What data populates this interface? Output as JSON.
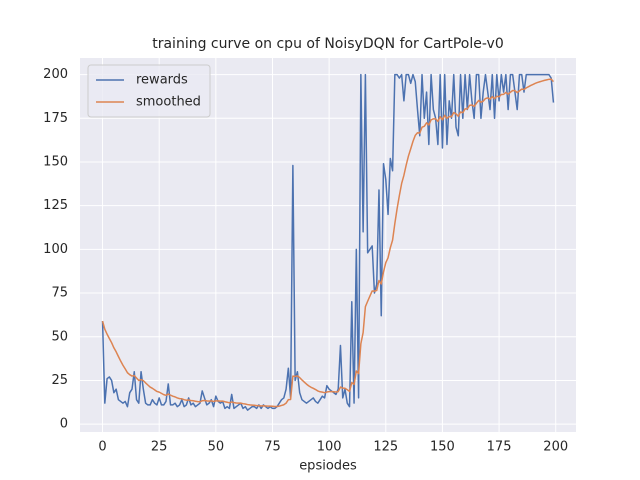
{
  "chart_data": {
    "type": "line",
    "title": "training curve on cpu of NoisyDQN for CartPole-v0",
    "x_label": "epsiodes",
    "x": [
      0,
      1,
      2,
      3,
      4,
      5,
      6,
      7,
      8,
      9,
      10,
      11,
      12,
      13,
      14,
      15,
      16,
      17,
      18,
      19,
      20,
      21,
      22,
      23,
      24,
      25,
      26,
      27,
      28,
      29,
      30,
      31,
      32,
      33,
      34,
      35,
      36,
      37,
      38,
      39,
      40,
      41,
      42,
      43,
      44,
      45,
      46,
      47,
      48,
      49,
      50,
      51,
      52,
      53,
      54,
      55,
      56,
      57,
      58,
      59,
      60,
      61,
      62,
      63,
      64,
      65,
      66,
      67,
      68,
      69,
      70,
      71,
      72,
      73,
      74,
      75,
      76,
      77,
      78,
      79,
      80,
      81,
      82,
      83,
      84,
      85,
      86,
      87,
      88,
      89,
      90,
      91,
      92,
      93,
      94,
      95,
      96,
      97,
      98,
      99,
      100,
      101,
      102,
      103,
      104,
      105,
      106,
      107,
      108,
      109,
      110,
      111,
      112,
      113,
      114,
      115,
      116,
      117,
      118,
      119,
      120,
      121,
      122,
      123,
      124,
      125,
      126,
      127,
      128,
      129,
      130,
      131,
      132,
      133,
      134,
      135,
      136,
      137,
      138,
      139,
      140,
      141,
      142,
      143,
      144,
      145,
      146,
      147,
      148,
      149,
      150,
      151,
      152,
      153,
      154,
      155,
      156,
      157,
      158,
      159,
      160,
      161,
      162,
      163,
      164,
      165,
      166,
      167,
      168,
      169,
      170,
      171,
      172,
      173,
      174,
      175,
      176,
      177,
      178,
      179,
      180,
      181,
      182,
      183,
      184,
      185,
      186,
      187,
      188,
      189,
      190,
      191,
      192,
      193,
      194,
      195,
      196,
      197,
      198,
      199
    ],
    "series": [
      {
        "name": "rewards",
        "color": "#4c72b0",
        "values": [
          59,
          12,
          26,
          27,
          25,
          18,
          20,
          14,
          13,
          12,
          13,
          10,
          18,
          20,
          30,
          14,
          12,
          30,
          20,
          12,
          11,
          11,
          14,
          12,
          11,
          15,
          11,
          11,
          13,
          23,
          11,
          11,
          12,
          10,
          11,
          14,
          10,
          11,
          15,
          11,
          12,
          10,
          11,
          12,
          19,
          15,
          11,
          12,
          14,
          10,
          16,
          13,
          12,
          13,
          9,
          10,
          9,
          17,
          9,
          10,
          11,
          12,
          9,
          10,
          8,
          9,
          10,
          10,
          9,
          11,
          9,
          11,
          10,
          9,
          10,
          9,
          9,
          10,
          12,
          14,
          15,
          20,
          32,
          15,
          148,
          25,
          30,
          18,
          14,
          13,
          12,
          13,
          14,
          15,
          13,
          12,
          14,
          16,
          15,
          22,
          20,
          19,
          18,
          17,
          20,
          45,
          15,
          20,
          12,
          10,
          70,
          12,
          100,
          15,
          200,
          110,
          200,
          98,
          100,
          102,
          75,
          80,
          134,
          62,
          149,
          140,
          120,
          152,
          145,
          200,
          200,
          198,
          200,
          185,
          200,
          200,
          195,
          200,
          196,
          180,
          165,
          200,
          175,
          190,
          160,
          200,
          180,
          175,
          160,
          200,
          158,
          200,
          160,
          185,
          175,
          200,
          170,
          165,
          200,
          175,
          200,
          180,
          200,
          185,
          175,
          200,
          200,
          175,
          190,
          200,
          190,
          180,
          200,
          175,
          200,
          185,
          200,
          190,
          200,
          180,
          200,
          200,
          190,
          180,
          200,
          200,
          190,
          200,
          200,
          200,
          200,
          200,
          200,
          200,
          200,
          200,
          200,
          200,
          198,
          184
        ]
      },
      {
        "name": "smoothed",
        "color": "#dd8452",
        "values": [
          59,
          54.3,
          51.5,
          49,
          46.6,
          43.7,
          41.4,
          38.7,
          36.1,
          33.7,
          31.6,
          29.4,
          28.3,
          27.5,
          27.8,
          26.4,
          25,
          25.5,
          24.9,
          23.6,
          22.4,
          21.2,
          20.5,
          19.6,
          18.7,
          18.3,
          17.6,
          16.9,
          16.5,
          17.2,
          16.6,
          16,
          15.6,
          15,
          14.6,
          14.5,
          14,
          13.7,
          13.8,
          13.5,
          13.4,
          13.1,
          12.9,
          12.8,
          13.4,
          13.5,
          13.3,
          13.2,
          13.3,
          13,
          13.3,
          13.3,
          13.2,
          13.2,
          12.8,
          12.5,
          12.2,
          12.7,
          12.3,
          12.1,
          12,
          12,
          11.7,
          11.5,
          11.2,
          11,
          10.9,
          10.8,
          10.6,
          10.6,
          10.4,
          10.5,
          10.4,
          10.3,
          10.3,
          10.2,
          10.1,
          10.1,
          10.3,
          10.7,
          11.1,
          12,
          14,
          14.1,
          27.5,
          27.3,
          27.6,
          26.6,
          25.3,
          24.1,
          22.9,
          21.9,
          21.1,
          20.5,
          19.8,
          19,
          18.5,
          18.3,
          18,
          18.4,
          18.6,
          18.6,
          18.5,
          18.4,
          18.6,
          21.2,
          20.6,
          20.5,
          19.7,
          18.7,
          23.8,
          22.7,
          30.4,
          28.9,
          46,
          52.4,
          67.2,
          70.3,
          73.3,
          76.2,
          76.1,
          76.5,
          82.2,
          80.2,
          87.1,
          92.4,
          95.2,
          100.9,
          105.3,
          114.8,
          123.3,
          130.8,
          137.7,
          142.4,
          148.2,
          153.4,
          157.5,
          161.8,
          165.2,
          166.7,
          166.5,
          169.9,
          170.4,
          172.4,
          171.2,
          174.1,
          174.7,
          174.7,
          173.2,
          175.9,
          174.1,
          176.7,
          175,
          176,
          175.9,
          178.3,
          177.5,
          176.2,
          178.6,
          178.2,
          180.4,
          180.4,
          182.4,
          182.6,
          181.8,
          183.6,
          185.2,
          184.2,
          184.8,
          186.3,
          186.7,
          186,
          187.4,
          186.2,
          187.6,
          187.3,
          188.6,
          188.7,
          189.8,
          188.8,
          189.9,
          190.9,
          190.8,
          189.7,
          190.7,
          191.7,
          191.5,
          192.4,
          193.1,
          193.8,
          194.4,
          195,
          195.5,
          195.9,
          196.3,
          196.7,
          197,
          197.3,
          197.4,
          196
        ]
      }
    ],
    "xlim": [
      -9.95,
      208.95
    ],
    "ylim": [
      -4.5,
      209.5
    ],
    "xticks": [
      0,
      25,
      50,
      75,
      100,
      125,
      150,
      175,
      200
    ],
    "yticks": [
      0,
      25,
      50,
      75,
      100,
      125,
      150,
      175,
      200
    ],
    "grid": true,
    "legend": "upper left"
  }
}
